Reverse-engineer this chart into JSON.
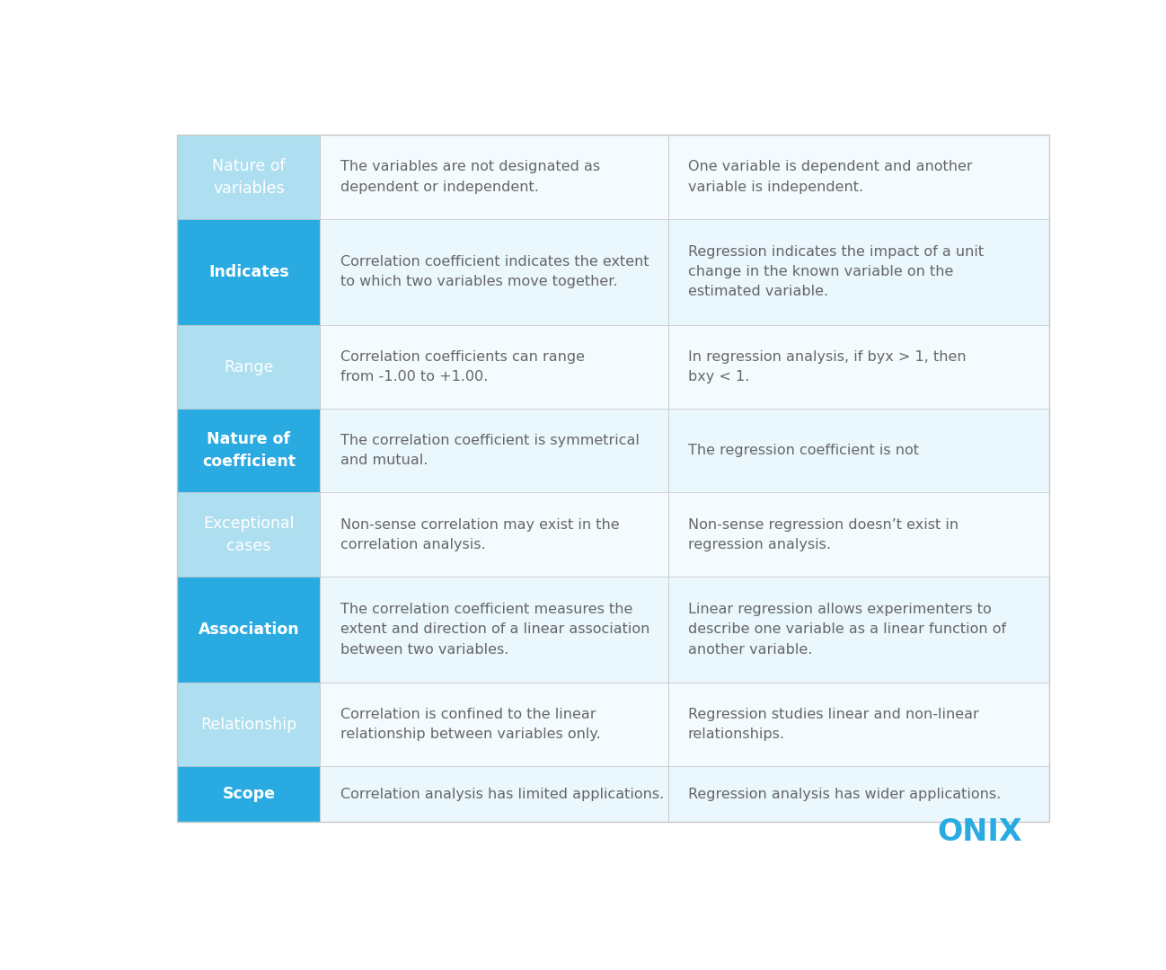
{
  "rows": [
    {
      "label": "Nature of\nvariables",
      "dark": false,
      "correlation": "The variables are not designated as\ndependent or independent.",
      "regression": "One variable is dependent and another\nvariable is independent."
    },
    {
      "label": "Indicates",
      "dark": true,
      "correlation": "Correlation coefficient indicates the extent\nto which two variables move together.",
      "regression": "Regression indicates the impact of a unit\nchange in the known variable on the\nestimated variable."
    },
    {
      "label": "Range",
      "dark": false,
      "correlation": "Correlation coefficients can range\nfrom -1.00 to +1.00.",
      "regression": "In regression analysis, if byx > 1, then\nbxy < 1."
    },
    {
      "label": "Nature of\ncoefficient",
      "dark": true,
      "correlation": "The correlation coefficient is symmetrical\nand mutual.",
      "regression": "The regression coefficient is not"
    },
    {
      "label": "Exceptional\ncases",
      "dark": false,
      "correlation": "Non-sense correlation may exist in the\ncorrelation analysis.",
      "regression": "Non-sense regression doesn’t exist in\nregression analysis."
    },
    {
      "label": "Association",
      "dark": true,
      "correlation": "The correlation coefficient measures the\nextent and direction of a linear association\nbetween two variables.",
      "regression": "Linear regression allows experimenters to\ndescribe one variable as a linear function of\nanother variable."
    },
    {
      "label": "Relationship",
      "dark": false,
      "correlation": "Correlation is confined to the linear\nrelationship between variables only.",
      "regression": "Regression studies linear and non-linear\nrelationships."
    },
    {
      "label": "Scope",
      "dark": true,
      "correlation": "Correlation analysis has limited applications.",
      "regression": "Regression analysis has wider applications."
    }
  ],
  "color_dark": "#29ABE2",
  "color_light": "#ADDFF0",
  "color_cell_light": "#F4FBFF",
  "color_cell_dark": "#EAF7FD",
  "color_text_label": "#FFFFFF",
  "color_text_content": "#666666",
  "color_grid": "#C8C8C8",
  "color_background": "#FFFFFF",
  "brand_text": "ONIX",
  "brand_color": "#29ABE2"
}
